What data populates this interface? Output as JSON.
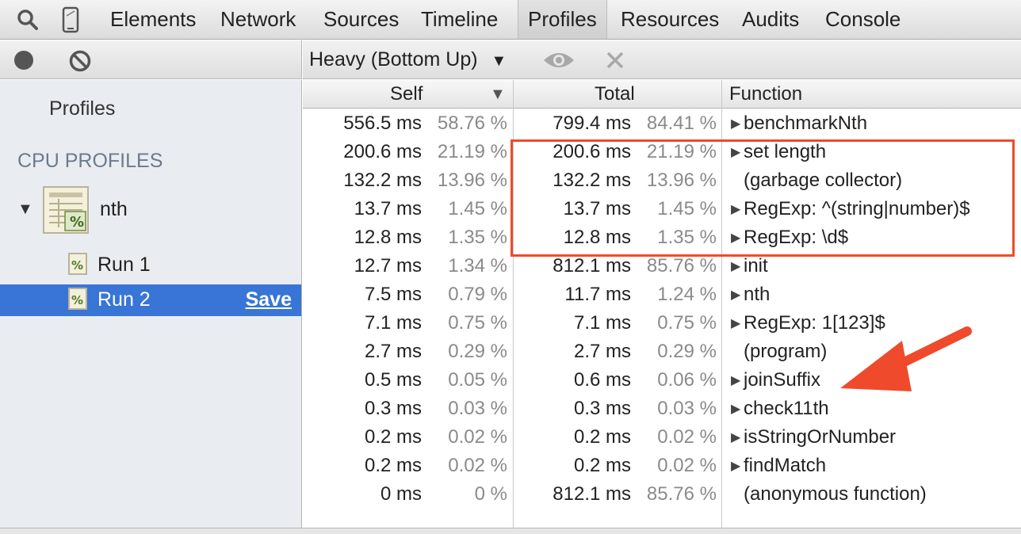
{
  "tabs": [
    "Elements",
    "Network",
    "Sources",
    "Timeline",
    "Profiles",
    "Resources",
    "Audits",
    "Console"
  ],
  "active_tab": "Profiles",
  "icons": {
    "search": "search-icon",
    "device": "device-mode-icon",
    "record": "record-icon",
    "clear": "clear-icon",
    "dropdown": "chevron-down-icon",
    "focus": "eye-icon",
    "exclude": "close-icon",
    "profile": "cpu-profile-icon",
    "run": "run-profile-icon"
  },
  "sidebar": {
    "profiles_label": "Profiles",
    "section_title": "CPU PROFILES",
    "group_label": "nth",
    "runs": [
      {
        "label": "Run 1",
        "selected": false
      },
      {
        "label": "Run 2",
        "selected": true,
        "action": "Save"
      }
    ]
  },
  "toolbar": {
    "view_label": "Heavy (Bottom Up)"
  },
  "grid": {
    "headers": {
      "self": "Self",
      "total": "Total",
      "function": "Function"
    },
    "rows": [
      {
        "self_ms": "556.5 ms",
        "self_pct": "58.76 %",
        "total_ms": "799.4 ms",
        "total_pct": "84.41 %",
        "fn": "benchmarkNth",
        "expandable": true
      },
      {
        "self_ms": "200.6 ms",
        "self_pct": "21.19 %",
        "total_ms": "200.6 ms",
        "total_pct": "21.19 %",
        "fn": "set length",
        "expandable": true
      },
      {
        "self_ms": "132.2 ms",
        "self_pct": "13.96 %",
        "total_ms": "132.2 ms",
        "total_pct": "13.96 %",
        "fn": "(garbage collector)",
        "expandable": false
      },
      {
        "self_ms": "13.7 ms",
        "self_pct": "1.45 %",
        "total_ms": "13.7 ms",
        "total_pct": "1.45 %",
        "fn": "RegExp: ^(string|number)$",
        "expandable": true
      },
      {
        "self_ms": "12.8 ms",
        "self_pct": "1.35 %",
        "total_ms": "12.8 ms",
        "total_pct": "1.35 %",
        "fn": "RegExp: \\d$",
        "expandable": true
      },
      {
        "self_ms": "12.7 ms",
        "self_pct": "1.34 %",
        "total_ms": "812.1 ms",
        "total_pct": "85.76 %",
        "fn": "init",
        "expandable": true
      },
      {
        "self_ms": "7.5 ms",
        "self_pct": "0.79 %",
        "total_ms": "11.7 ms",
        "total_pct": "1.24 %",
        "fn": "nth",
        "expandable": true
      },
      {
        "self_ms": "7.1 ms",
        "self_pct": "0.75 %",
        "total_ms": "7.1 ms",
        "total_pct": "0.75 %",
        "fn": "RegExp: 1[123]$",
        "expandable": true
      },
      {
        "self_ms": "2.7 ms",
        "self_pct": "0.29 %",
        "total_ms": "2.7 ms",
        "total_pct": "0.29 %",
        "fn": "(program)",
        "expandable": false
      },
      {
        "self_ms": "0.5 ms",
        "self_pct": "0.05 %",
        "total_ms": "0.6 ms",
        "total_pct": "0.06 %",
        "fn": "joinSuffix",
        "expandable": true
      },
      {
        "self_ms": "0.3 ms",
        "self_pct": "0.03 %",
        "total_ms": "0.3 ms",
        "total_pct": "0.03 %",
        "fn": "check11th",
        "expandable": true
      },
      {
        "self_ms": "0.2 ms",
        "self_pct": "0.02 %",
        "total_ms": "0.2 ms",
        "total_pct": "0.02 %",
        "fn": "isStringOrNumber",
        "expandable": true
      },
      {
        "self_ms": "0.2 ms",
        "self_pct": "0.02 %",
        "total_ms": "0.2 ms",
        "total_pct": "0.02 %",
        "fn": "findMatch",
        "expandable": true
      },
      {
        "self_ms": "0 ms",
        "self_pct": "0 %",
        "total_ms": "812.1 ms",
        "total_pct": "85.76 %",
        "fn": "(anonymous function)",
        "expandable": false
      }
    ]
  },
  "colors": {
    "selection": "#3875d7",
    "annotation": "#ef4a2b",
    "sidebar_bg": "#e9edf1",
    "section_title": "#6b7b8e"
  }
}
